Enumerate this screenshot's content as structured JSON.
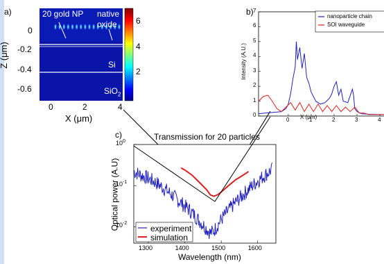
{
  "panels": {
    "a": {
      "panel_label": "a)",
      "annotations": {
        "np": "20 gold NP",
        "native_line1": "native",
        "native_line2": "oxide",
        "si": "Si",
        "sio2": "SiO",
        "sio2_sub": "2"
      },
      "ylabel": "Z (μm)",
      "xlabel": "X (μm)",
      "yticks": [
        "0",
        "-0.2",
        "-0.4",
        "-0.6"
      ],
      "xticks": [
        "0",
        "2",
        "4"
      ],
      "colorbar_ticks": [
        "6",
        "4",
        "2"
      ]
    },
    "b": {
      "panel_label": "b)",
      "ylabel": "Intensity (A.U.)",
      "xlabel": "X (μm)",
      "yticks": [
        "7",
        "6",
        "5",
        "4",
        "3",
        "2",
        "1",
        "0"
      ],
      "xticks": [
        "0",
        "1",
        "2",
        "3",
        "4"
      ],
      "legend": [
        "nanoparticle chain",
        "SOI waveguide"
      ]
    },
    "c": {
      "panel_label": "c)",
      "title": "Transmission for 20 particles",
      "ylabel": "Optical power (A.U)",
      "xlabel": "Wavelength (nm)",
      "xticks": [
        "1300",
        "1400",
        "1500",
        "1600"
      ],
      "ytick_base": "10",
      "ytick_exps": [
        "0",
        "-1",
        "-2"
      ],
      "legend": [
        "experiment",
        "simulation"
      ]
    }
  },
  "chart_data": [
    {
      "type": "heatmap",
      "panel": "a",
      "xlabel": "X (μm)",
      "ylabel": "Z (μm)",
      "xlim": [
        -0.7,
        4
      ],
      "ylim": [
        -0.7,
        0.15
      ],
      "colorbar_range": [
        0,
        6.5
      ],
      "layers": [
        "native oxide",
        "Si",
        "SiO2"
      ],
      "hotspot_z": -0.02,
      "hotspot_x_range": [
        0.2,
        3.8
      ]
    },
    {
      "type": "line",
      "panel": "b",
      "xlabel": "X (μm)",
      "ylabel": "Intensity (A.U.)",
      "xlim": [
        -1.3,
        4.3
      ],
      "ylim": [
        0,
        7
      ],
      "series": [
        {
          "name": "nanoparticle chain",
          "color": "#2020c0",
          "x": [
            -1.3,
            -1.0,
            -0.6,
            -0.3,
            -0.1,
            0.0,
            0.1,
            0.2,
            0.3,
            0.35,
            0.4,
            0.5,
            0.6,
            0.7,
            0.8,
            0.9,
            1.0,
            1.1,
            1.2,
            1.4,
            1.6,
            1.8,
            1.9,
            2.0,
            2.1,
            2.2,
            2.3,
            2.4,
            2.6,
            2.8,
            2.85,
            2.9,
            3.0,
            3.2,
            3.5,
            4.0,
            4.3
          ],
          "y": [
            0.15,
            0.2,
            0.25,
            0.3,
            0.5,
            0.8,
            1.5,
            2.5,
            3.3,
            5.0,
            3.8,
            4.6,
            3.2,
            4.2,
            2.6,
            2.2,
            1.6,
            1.3,
            1.0,
            0.8,
            0.9,
            1.2,
            1.5,
            2.0,
            2.3,
            1.4,
            1.8,
            1.0,
            0.9,
            1.8,
            1.4,
            0.5,
            0.3,
            0.15,
            0.12,
            0.1,
            0.1
          ]
        },
        {
          "name": "SOI waveguide",
          "color": "#dd2020",
          "x": [
            -1.3,
            -1.1,
            -0.9,
            -0.7,
            -0.5,
            -0.3,
            -0.1,
            0.1,
            0.3,
            0.5,
            0.7,
            0.9,
            1.1,
            1.3,
            1.5,
            1.7,
            1.9,
            2.1,
            2.3,
            2.5,
            2.7,
            2.9,
            3.1,
            3.3,
            3.5,
            3.7,
            3.9,
            4.1,
            4.3
          ],
          "y": [
            1.0,
            1.3,
            1.4,
            1.0,
            0.5,
            0.3,
            0.6,
            0.9,
            0.4,
            0.9,
            0.3,
            0.8,
            0.3,
            0.8,
            0.3,
            0.7,
            0.3,
            0.7,
            0.3,
            0.6,
            0.3,
            0.6,
            0.2,
            0.2,
            0.1,
            0.1,
            0.1,
            0.1,
            0.1
          ]
        }
      ]
    },
    {
      "type": "line",
      "panel": "c",
      "title": "Transmission for 20 particles",
      "xlabel": "Wavelength (nm)",
      "ylabel": "Optical power (A.U)",
      "yscale": "log",
      "xlim": [
        1260,
        1650
      ],
      "ylim": [
        0.004,
        1.0
      ],
      "series": [
        {
          "name": "experiment",
          "color": "#2020c0",
          "x": [
            1260,
            1280,
            1300,
            1320,
            1340,
            1360,
            1380,
            1400,
            1420,
            1440,
            1460,
            1470,
            1480,
            1490,
            1500,
            1520,
            1540,
            1560,
            1580,
            1600,
            1620,
            1640
          ],
          "y": [
            0.22,
            0.18,
            0.15,
            0.12,
            0.09,
            0.065,
            0.045,
            0.032,
            0.022,
            0.014,
            0.009,
            0.007,
            0.008,
            0.011,
            0.015,
            0.025,
            0.04,
            0.06,
            0.09,
            0.13,
            0.18,
            0.25
          ],
          "noise_dex": 0.18
        },
        {
          "name": "simulation",
          "color": "#dd2020",
          "x": [
            1390,
            1400,
            1420,
            1440,
            1460,
            1470,
            1480,
            1490,
            1500,
            1520,
            1540,
            1560,
            1575
          ],
          "y": [
            0.27,
            0.24,
            0.18,
            0.12,
            0.08,
            0.06,
            0.055,
            0.06,
            0.07,
            0.1,
            0.14,
            0.18,
            0.22
          ]
        }
      ]
    }
  ]
}
